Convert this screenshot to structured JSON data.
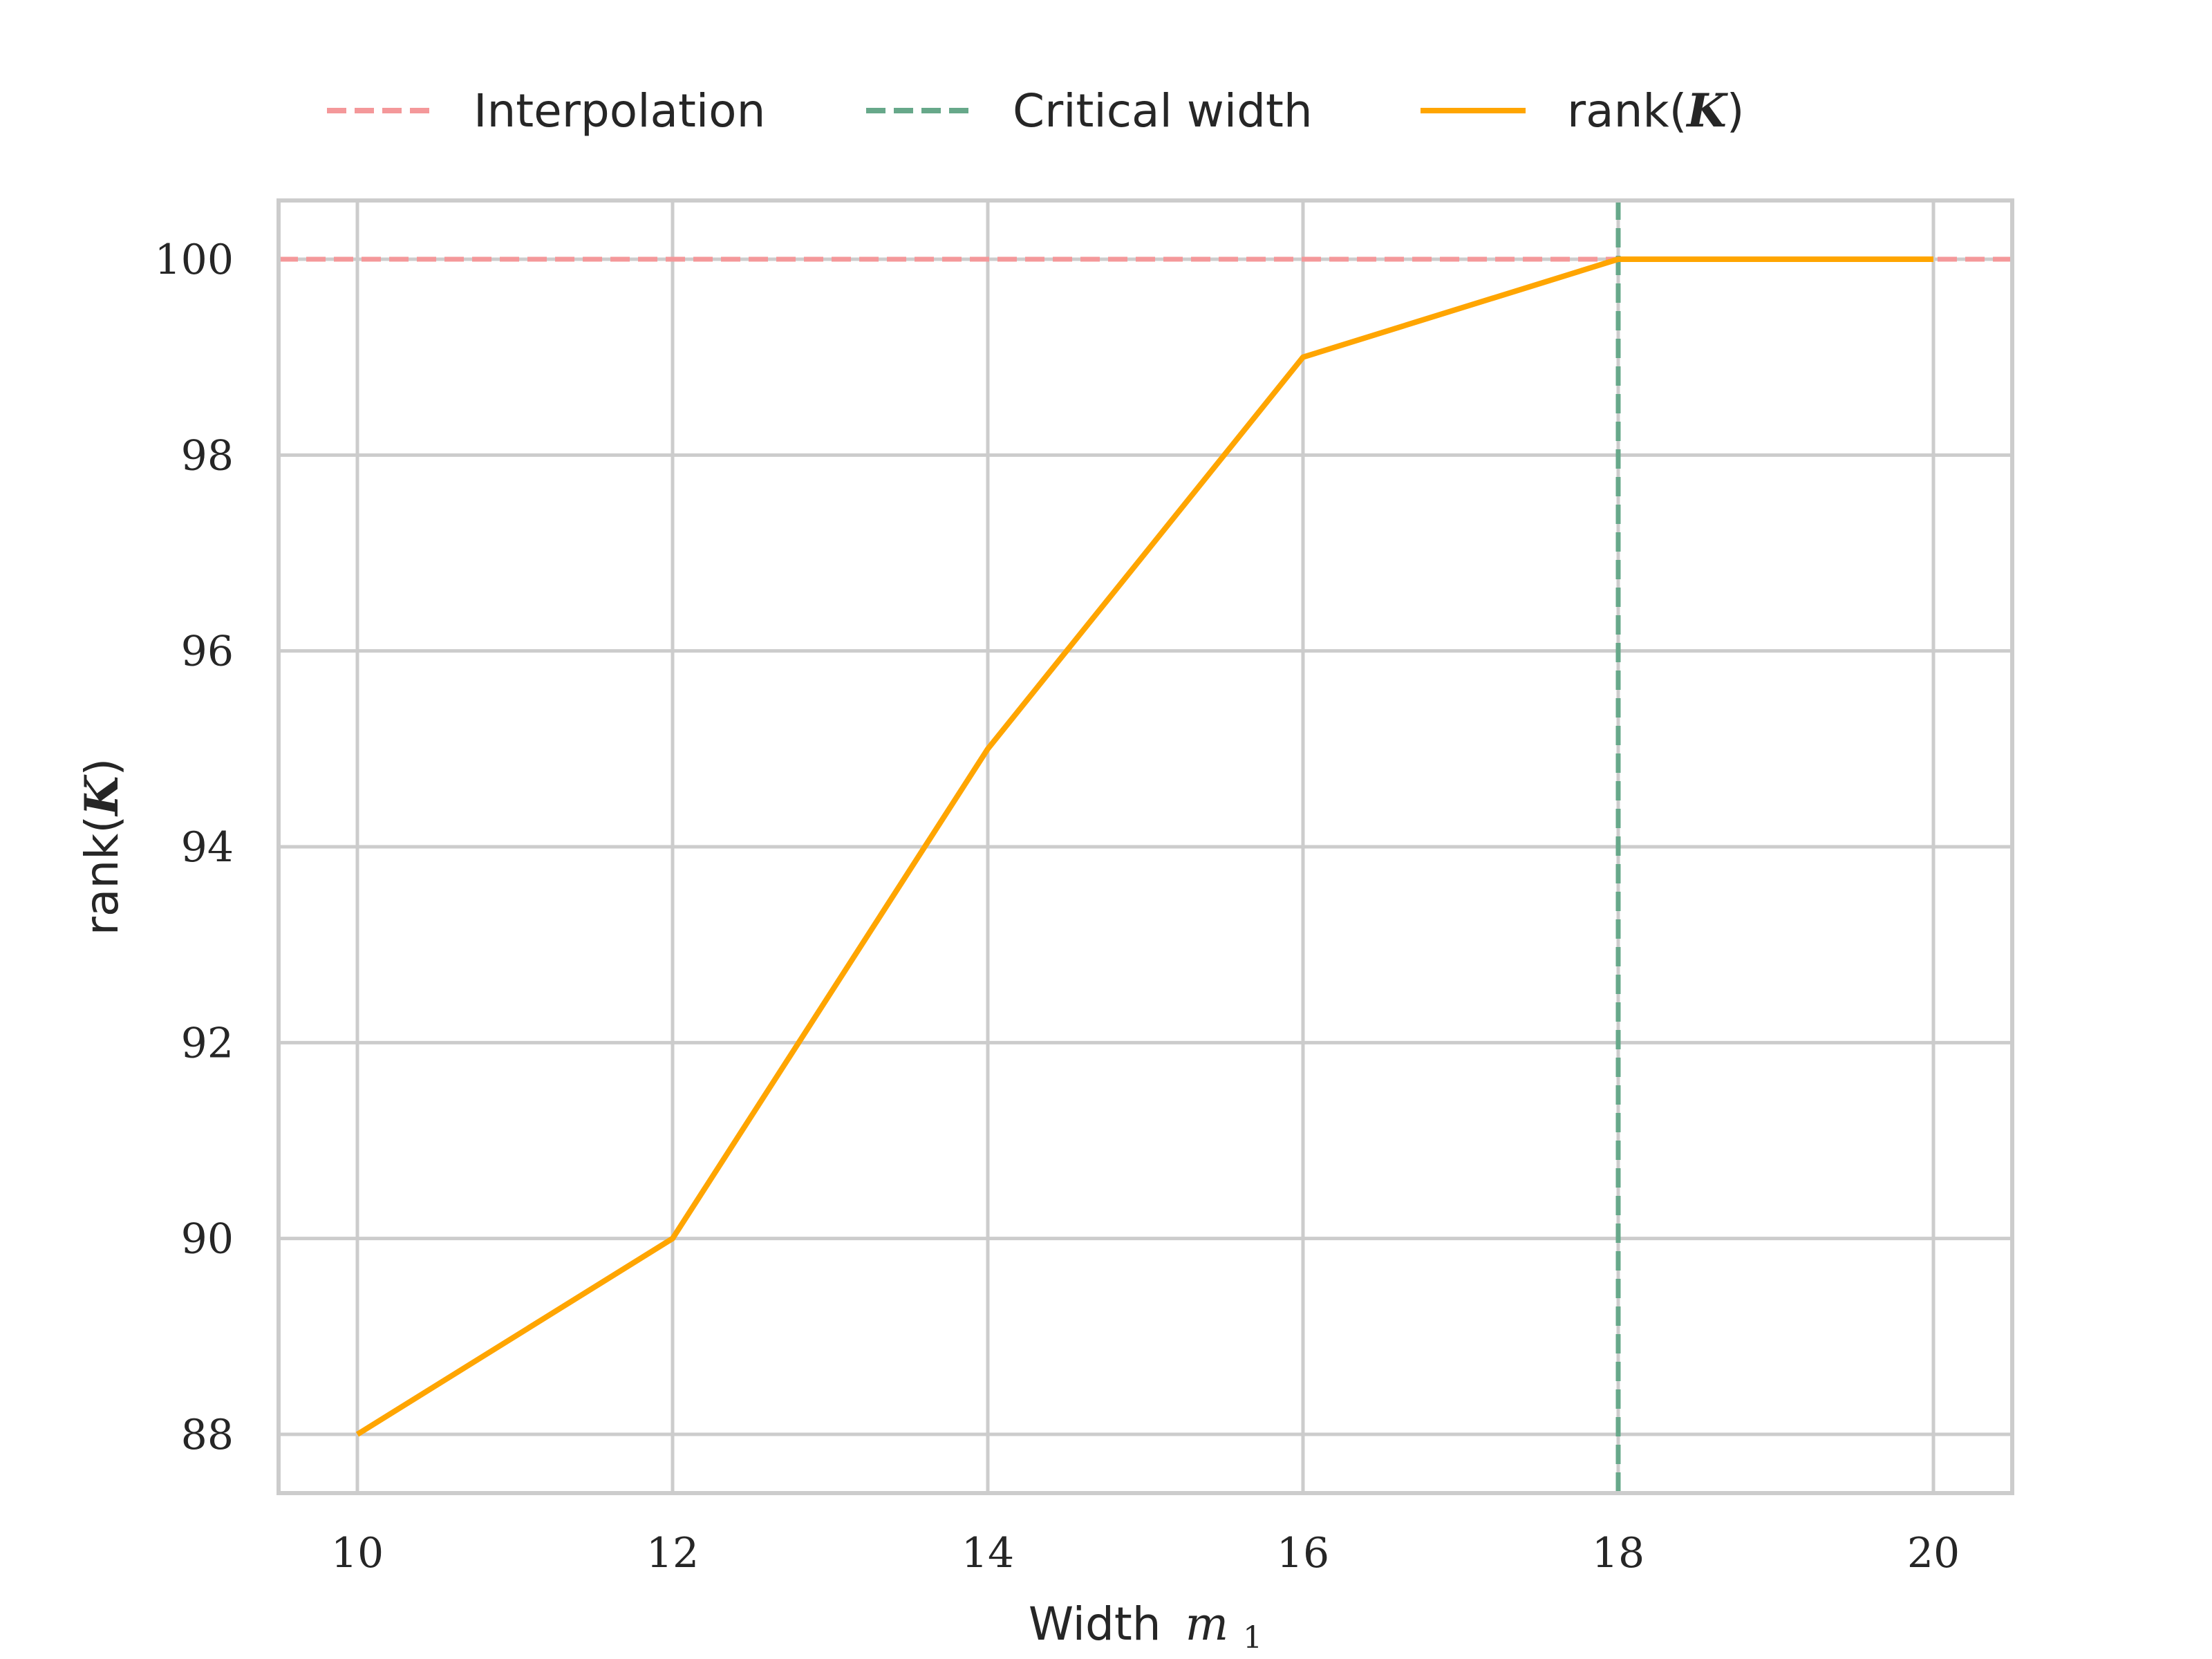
{
  "chart_data": {
    "type": "line",
    "title": "",
    "xlabel": "Width",
    "xlabel_math": "m",
    "xlabel_sub": "1",
    "ylabel_prefix": "rank(",
    "ylabel_symbol": "K",
    "ylabel_suffix": ")",
    "xlim": [
      9.5,
      20.5
    ],
    "ylim": [
      87.4,
      100.6
    ],
    "xticks": [
      10,
      12,
      14,
      16,
      18,
      20
    ],
    "yticks": [
      88,
      90,
      92,
      94,
      96,
      98,
      100
    ],
    "grid": true,
    "legend_position": "top-center",
    "series": [
      {
        "name": "rank(K)",
        "name_prefix": "rank(",
        "name_symbol": "K",
        "name_suffix": ")",
        "style": "solid",
        "color": "#ffa500",
        "x": [
          10,
          12,
          14,
          16,
          18,
          20
        ],
        "y": [
          88,
          90,
          95,
          99,
          100,
          100
        ]
      }
    ],
    "reference_lines": [
      {
        "name": "Interpolation",
        "orientation": "horizontal",
        "value": 100,
        "style": "dashed",
        "color": "#f4989a"
      },
      {
        "name": "Critical width",
        "orientation": "vertical",
        "value": 18,
        "style": "dashed",
        "color": "#67a88a"
      }
    ]
  }
}
